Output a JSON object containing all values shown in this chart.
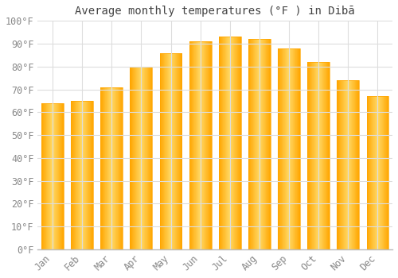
{
  "title": "Average monthly temperatures (°F ) in Dibā",
  "months": [
    "Jan",
    "Feb",
    "Mar",
    "Apr",
    "May",
    "Jun",
    "Jul",
    "Aug",
    "Sep",
    "Oct",
    "Nov",
    "Dec"
  ],
  "values": [
    64,
    65,
    71,
    80,
    86,
    91,
    93,
    92,
    88,
    82,
    74,
    67
  ],
  "bar_color_light": "#FFD966",
  "bar_color_dark": "#FFA500",
  "background_color": "#FFFFFF",
  "grid_color": "#DDDDDD",
  "text_color": "#888888",
  "title_color": "#444444",
  "ylim": [
    0,
    100
  ],
  "yticks": [
    0,
    10,
    20,
    30,
    40,
    50,
    60,
    70,
    80,
    90,
    100
  ],
  "title_fontsize": 10,
  "tick_fontsize": 8.5
}
